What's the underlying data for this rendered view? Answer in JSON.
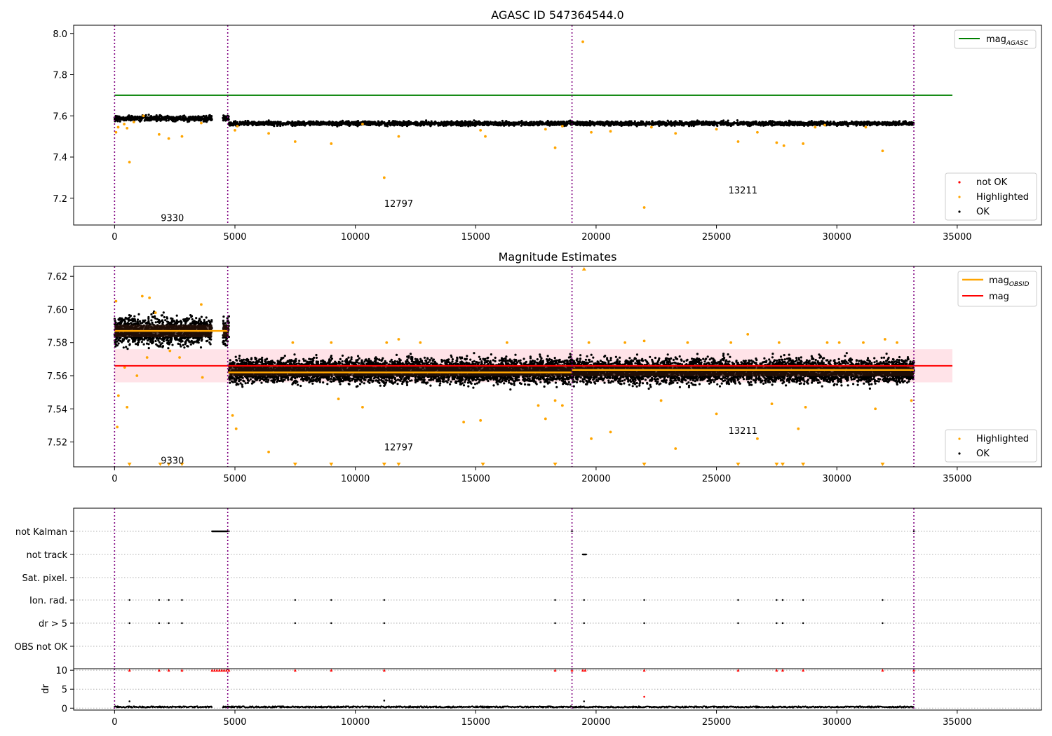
{
  "chart_data": [
    {
      "type": "scatter",
      "title": "AGASC ID 547364544.0",
      "xlim": [
        -1700,
        38500
      ],
      "ylim": [
        7.07,
        8.04
      ],
      "xticks": [
        0,
        5000,
        10000,
        15000,
        20000,
        25000,
        30000,
        35000
      ],
      "yticks": [
        7.2,
        7.4,
        7.6,
        7.8,
        8.0
      ],
      "ytick_labels": [
        "7.2",
        "7.4",
        "7.6",
        "7.8",
        "8.0"
      ],
      "grid": false,
      "obsid_boundaries": [
        0,
        4700,
        19000,
        33200
      ],
      "obsid_labels": [
        {
          "text": "9330",
          "x": 2400,
          "y": 7.105
        },
        {
          "text": "12797",
          "x": 11800,
          "y": 7.175
        },
        {
          "text": "13211",
          "x": 26100,
          "y": 7.24
        }
      ],
      "lines": [
        {
          "name": "mag",
          "subscript": "AGASC",
          "color": "#008000",
          "x": [
            0,
            34800
          ],
          "y": [
            7.7,
            7.7
          ]
        }
      ],
      "ok_segments": [
        {
          "x": [
            0,
            4050
          ],
          "center": 7.588,
          "spread": 0.012
        },
        {
          "x": [
            4500,
            4750
          ],
          "center": 7.588,
          "spread": 0.012
        },
        {
          "x": [
            4750,
            33200
          ],
          "center": 7.563,
          "spread": 0.009
        }
      ],
      "highlighted_points": [
        [
          60,
          7.52
        ],
        [
          150,
          7.545
        ],
        [
          400,
          7.56
        ],
        [
          520,
          7.54
        ],
        [
          620,
          7.375
        ],
        [
          800,
          7.57
        ],
        [
          1200,
          7.6
        ],
        [
          1850,
          7.51
        ],
        [
          2250,
          7.49
        ],
        [
          2800,
          7.5
        ],
        [
          3600,
          7.565
        ],
        [
          5000,
          7.53
        ],
        [
          5100,
          7.55
        ],
        [
          6400,
          7.515
        ],
        [
          7500,
          7.475
        ],
        [
          9000,
          7.465
        ],
        [
          10300,
          7.56
        ],
        [
          11200,
          7.3
        ],
        [
          11800,
          7.5
        ],
        [
          15200,
          7.53
        ],
        [
          15400,
          7.5
        ],
        [
          17900,
          7.535
        ],
        [
          18300,
          7.445
        ],
        [
          18600,
          7.55
        ],
        [
          19450,
          7.96
        ],
        [
          19800,
          7.52
        ],
        [
          20600,
          7.525
        ],
        [
          22000,
          7.155
        ],
        [
          22300,
          7.545
        ],
        [
          23300,
          7.515
        ],
        [
          25000,
          7.535
        ],
        [
          25900,
          7.475
        ],
        [
          26700,
          7.52
        ],
        [
          27500,
          7.47
        ],
        [
          27800,
          7.455
        ],
        [
          28600,
          7.465
        ],
        [
          29100,
          7.545
        ],
        [
          29500,
          7.555
        ],
        [
          31200,
          7.545
        ],
        [
          31900,
          7.43
        ]
      ],
      "legend_top": {
        "location": "upper right",
        "entries": [
          {
            "label": "mag",
            "subscript": "AGASC",
            "color": "#008000"
          }
        ]
      },
      "legend_bottom": {
        "location": "lower right",
        "entries": [
          {
            "label": "not OK",
            "color": "#ff0000"
          },
          {
            "label": "Highlighted",
            "color": "#ffa500"
          },
          {
            "label": "OK",
            "color": "#000000"
          }
        ]
      }
    },
    {
      "type": "scatter",
      "title": "Magnitude Estimates",
      "xlim": [
        -1700,
        38500
      ],
      "ylim": [
        7.505,
        7.626
      ],
      "xticks": [
        0,
        5000,
        10000,
        15000,
        20000,
        25000,
        30000,
        35000
      ],
      "yticks": [
        7.52,
        7.54,
        7.56,
        7.58,
        7.6,
        7.62
      ],
      "ytick_labels": [
        "7.52",
        "7.54",
        "7.56",
        "7.58",
        "7.60",
        "7.62"
      ],
      "grid": false,
      "obsid_boundaries": [
        0,
        4700,
        19000,
        33200
      ],
      "obsid_labels": [
        {
          "text": "9330",
          "x": 2400,
          "y": 7.509
        },
        {
          "text": "12797",
          "x": 11800,
          "y": 7.517
        },
        {
          "text": "13211",
          "x": 26100,
          "y": 7.527
        }
      ],
      "mag": {
        "value": 7.566,
        "band": [
          7.556,
          7.576
        ],
        "x": [
          0,
          34800
        ],
        "color": "#ff0000"
      },
      "mag_obsid": [
        {
          "x": [
            0,
            4700
          ],
          "y": 7.587
        },
        {
          "x": [
            4700,
            19000
          ],
          "y": 7.562
        },
        {
          "x": [
            19000,
            33200
          ],
          "y": 7.5635
        }
      ],
      "ok_segments": [
        {
          "x": [
            0,
            4050
          ],
          "center": 7.587,
          "spread": 0.0075
        },
        {
          "x": [
            4500,
            4750
          ],
          "center": 7.587,
          "spread": 0.0075
        },
        {
          "x": [
            4750,
            33200
          ],
          "center": 7.563,
          "spread": 0.0065
        }
      ],
      "highlighted_points": [
        [
          60,
          7.605
        ],
        [
          110,
          7.529
        ],
        [
          160,
          7.548
        ],
        [
          420,
          7.565
        ],
        [
          520,
          7.541
        ],
        [
          930,
          7.56
        ],
        [
          1150,
          7.608
        ],
        [
          1350,
          7.571
        ],
        [
          1450,
          7.607
        ],
        [
          1700,
          7.598
        ],
        [
          2300,
          7.575
        ],
        [
          2700,
          7.571
        ],
        [
          3600,
          7.603
        ],
        [
          3650,
          7.559
        ],
        [
          4900,
          7.536
        ],
        [
          5050,
          7.528
        ],
        [
          6400,
          7.514
        ],
        [
          7400,
          7.58
        ],
        [
          9000,
          7.58
        ],
        [
          9300,
          7.546
        ],
        [
          10300,
          7.541
        ],
        [
          11300,
          7.58
        ],
        [
          11800,
          7.582
        ],
        [
          12700,
          7.58
        ],
        [
          14500,
          7.532
        ],
        [
          15200,
          7.533
        ],
        [
          16300,
          7.58
        ],
        [
          17600,
          7.542
        ],
        [
          17900,
          7.534
        ],
        [
          18300,
          7.545
        ],
        [
          18600,
          7.542
        ],
        [
          19700,
          7.58
        ],
        [
          19800,
          7.522
        ],
        [
          20600,
          7.526
        ],
        [
          21200,
          7.58
        ],
        [
          22000,
          7.581
        ],
        [
          22700,
          7.545
        ],
        [
          23300,
          7.516
        ],
        [
          23800,
          7.58
        ],
        [
          25000,
          7.537
        ],
        [
          25600,
          7.58
        ],
        [
          26300,
          7.585
        ],
        [
          26700,
          7.522
        ],
        [
          27300,
          7.543
        ],
        [
          27600,
          7.58
        ],
        [
          28400,
          7.528
        ],
        [
          28700,
          7.541
        ],
        [
          29600,
          7.58
        ],
        [
          30100,
          7.58
        ],
        [
          31100,
          7.58
        ],
        [
          31600,
          7.54
        ],
        [
          32000,
          7.582
        ],
        [
          32500,
          7.58
        ],
        [
          33100,
          7.545
        ]
      ],
      "clipped_low": [
        620,
        1900,
        2250,
        2800,
        7500,
        9000,
        11200,
        11800,
        15300,
        18300,
        22000,
        25900,
        27500,
        27750,
        28600,
        31900
      ],
      "clipped_high": [
        19500
      ],
      "legend_top": {
        "location": "upper right",
        "entries": [
          {
            "label": "mag",
            "subscript": "OBSID",
            "color": "#ffa500"
          },
          {
            "label": "mag",
            "color": "#ff0000"
          }
        ]
      },
      "legend_bottom": {
        "location": "lower right",
        "entries": [
          {
            "label": "Highlighted",
            "color": "#ffa500"
          },
          {
            "label": "OK",
            "color": "#000000"
          }
        ]
      }
    },
    {
      "type": "scatter",
      "title": "",
      "xlim": [
        -1700,
        38500
      ],
      "categories": [
        "not Kalman",
        "not track",
        "Sat. pixel.",
        "Ion. rad.",
        "dr > 5",
        "OBS not OK"
      ],
      "xticks": [
        0,
        5000,
        10000,
        15000,
        20000,
        25000,
        30000,
        35000
      ],
      "obsid_boundaries": [
        0,
        4700,
        19000,
        33200
      ],
      "flags": {
        "not Kalman": {
          "ranges": [
            [
              4050,
              4700
            ]
          ],
          "points": [
            4750,
            19000,
            33200
          ]
        },
        "not track": {
          "ranges": [
            [
              19450,
              19600
            ]
          ],
          "points": []
        },
        "Sat. pixel.": {
          "ranges": [],
          "points": []
        },
        "Ion. rad.": {
          "ranges": [],
          "points": [
            620,
            1850,
            2250,
            2800,
            7500,
            9000,
            11200,
            18300,
            19500,
            22000,
            25900,
            27500,
            27750,
            28600,
            31900
          ]
        },
        "dr > 5": {
          "ranges": [],
          "points": [
            620,
            1850,
            2250,
            2800,
            7500,
            9000,
            11200,
            18300,
            19500,
            22000,
            25900,
            27500,
            27750,
            28600,
            31900
          ]
        },
        "OBS not OK": {
          "ranges": [],
          "points": []
        }
      }
    },
    {
      "type": "scatter",
      "title": "",
      "ylabel": "dr",
      "xlim": [
        -1700,
        38500
      ],
      "ylim": [
        -0.5,
        10.4
      ],
      "yticks": [
        0,
        5,
        10
      ],
      "ytick_labels": [
        "0",
        "5",
        "10"
      ],
      "xticks": [
        0,
        5000,
        10000,
        15000,
        20000,
        25000,
        30000,
        35000
      ],
      "xtick_labels": [
        "0",
        "5000",
        "10000",
        "15000",
        "20000",
        "25000",
        "30000",
        "35000"
      ],
      "obsid_boundaries": [
        0,
        4700,
        19000,
        33200
      ],
      "baseline_segments": [
        [
          0,
          4050
        ],
        [
          4500,
          33200
        ]
      ],
      "clipped_markers": [
        620,
        1850,
        2250,
        2800,
        4050,
        4150,
        4250,
        4350,
        4450,
        4550,
        4650,
        4750,
        7500,
        9000,
        11200,
        18300,
        19000,
        19450,
        19550,
        22000,
        25900,
        27500,
        27750,
        28600,
        31900,
        33200
      ],
      "outliers": [
        [
          620,
          1.8
        ],
        [
          11200,
          2.0
        ],
        [
          19500,
          1.8
        ],
        [
          22000,
          3.0
        ]
      ]
    }
  ]
}
